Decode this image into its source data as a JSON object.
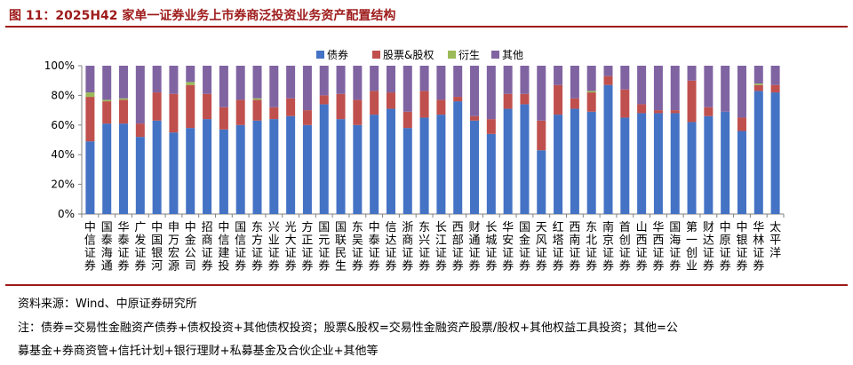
{
  "title": "图 11：2025H42 家单一证券业务上市券商泛投资业务资产配置结构",
  "source": "资料来源：Wind、中原证券研究所",
  "note_line1": "注：债券=交易性金融资产债券+债权投资+其他债权投资；股票&股权=交易性金融资产股票/股权+其他权益工具投资；其他=公",
  "note_line2": "募基金+券商资管+信托计划+银行理财+私募基金及合伙企业+其他等",
  "colors": {
    "bond": "#4472c4",
    "equity": "#c0504d",
    "deriv": "#9bbb59",
    "other": "#8064a2"
  },
  "chart_data": {
    "type": "bar",
    "stacked": true,
    "title": "",
    "xlabel": "",
    "ylabel": "",
    "ylim": [
      0,
      100
    ],
    "yticks": [
      "0%",
      "20%",
      "40%",
      "60%",
      "80%",
      "100%"
    ],
    "legend_position": "top",
    "categories": [
      "中信证券",
      "国泰海通",
      "华泰证券",
      "广发证券",
      "中国银河",
      "申万宏源",
      "中金公司",
      "招商证券",
      "中信建投",
      "国信证券",
      "东方证券",
      "兴业证券",
      "光大证券",
      "方正证券",
      "国元证券",
      "国联民生",
      "东吴证券",
      "中泰证券",
      "信达证券",
      "浙商证券",
      "东兴证券",
      "长江证券",
      "西部证券",
      "财通证券",
      "长城证券",
      "华安证券",
      "国金证券",
      "天风证券",
      "红塔证券",
      "西南证券",
      "东北证券",
      "南京证券",
      "首创证券",
      "山西证券",
      "华西证券",
      "国海证券",
      "第一创业",
      "财达证券",
      "中原证券",
      "中银证券",
      "华林证券",
      "太平洋"
    ],
    "series": [
      {
        "name": "债券",
        "key": "bond",
        "values": [
          49,
          61,
          61,
          52,
          63,
          55,
          58,
          64,
          57,
          60,
          63,
          64,
          66,
          60,
          74,
          64,
          60,
          67,
          71,
          58,
          65,
          67,
          76,
          63,
          54,
          71,
          74,
          43,
          67,
          71,
          69,
          87,
          65,
          68,
          68,
          68,
          62,
          66,
          69,
          56,
          83,
          82
        ]
      },
      {
        "name": "股票&股权",
        "key": "equity",
        "values": [
          30,
          15,
          16,
          9,
          19,
          26,
          29,
          17,
          15,
          17,
          14,
          8,
          12,
          10,
          6,
          17,
          17,
          16,
          11,
          11,
          18,
          10,
          3,
          3,
          10,
          10,
          7,
          20,
          20,
          7,
          13,
          6,
          19,
          6,
          2,
          2,
          28,
          6,
          0,
          9,
          4,
          5
        ]
      },
      {
        "name": "衍生",
        "key": "deriv",
        "values": [
          3,
          1,
          1,
          0,
          0,
          0,
          2,
          0,
          0,
          0,
          1,
          0,
          0,
          0,
          0,
          0,
          0,
          0,
          0,
          0,
          0,
          0,
          0,
          0,
          0,
          0,
          0,
          0,
          0,
          0,
          1,
          0,
          0,
          0,
          0,
          0,
          0,
          0,
          0,
          0,
          1,
          0
        ]
      },
      {
        "name": "其他",
        "key": "other",
        "values": [
          18,
          23,
          22,
          39,
          18,
          19,
          11,
          19,
          28,
          23,
          22,
          28,
          22,
          30,
          20,
          19,
          23,
          17,
          18,
          31,
          17,
          23,
          21,
          34,
          36,
          19,
          19,
          37,
          13,
          22,
          17,
          7,
          16,
          26,
          30,
          30,
          10,
          28,
          31,
          35,
          12,
          13
        ]
      }
    ]
  }
}
